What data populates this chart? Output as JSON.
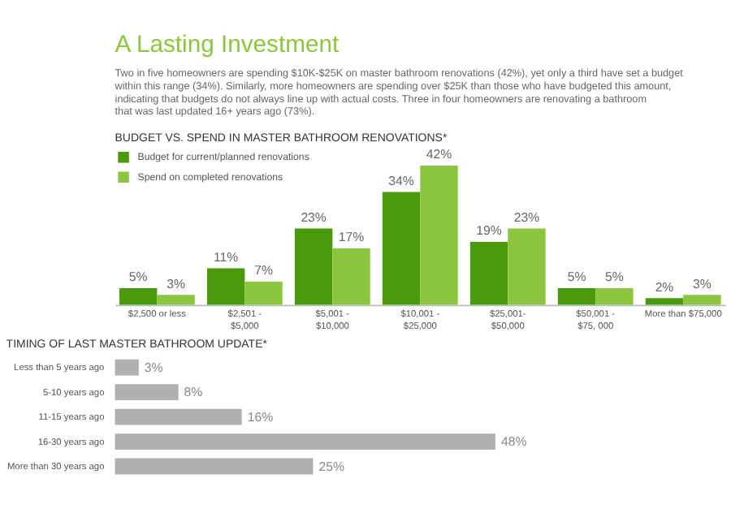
{
  "chart_data": [
    {
      "type": "bar",
      "title": "BUDGET VS. SPEND IN MASTER BATHROOM RENOVATIONS*",
      "annotations": [
        "A Lasting Investment",
        "Two in five homeowners are spending $10K-$25K on master bathroom renovations (42%), yet only a third have set a budget within this range (34%). Similarly, more homeowners are spending over $25K than those who have budgeted this amount, indicating that budgets do not always line up with actual costs. Three in four homeowners are renovating a bathroom that was last updated 16+ years ago (73%)."
      ],
      "categories": [
        "$2,500 or less",
        "$2,501 -\n$5,000",
        "$5,001 -\n$10,000",
        "$10,001 -\n$25,000",
        "$25,001-\n$50,000",
        "$50,001 -\n$75, 000",
        "More than $75,000"
      ],
      "series": [
        {
          "name": "Budget for current/planned renovations",
          "color": "#4b9a0c",
          "values": [
            5,
            11,
            23,
            34,
            19,
            5,
            2
          ],
          "value_labels": [
            "5%",
            "11%",
            "23%",
            "34%",
            "19%",
            "5%",
            "2%"
          ]
        },
        {
          "name": "Spend on completed renovations",
          "color": "#8cc63f",
          "values": [
            3,
            7,
            17,
            42,
            23,
            5,
            3
          ],
          "value_labels": [
            "3%",
            "7%",
            "17%",
            "42%",
            "23%",
            "5%",
            "3%"
          ]
        }
      ],
      "tick_labels": "x",
      "legend": "top left",
      "grid": false
    },
    {
      "type": "bar",
      "orientation": "horizontal",
      "title": "TIMING OF LAST MASTER BATHROOM UPDATE*",
      "categories": [
        "Less than 5 years ago",
        "5-10 years ago",
        "11-15 years ago",
        "16-30 years ago",
        "More than 30 years ago"
      ],
      "values": [
        3,
        8,
        16,
        48,
        25
      ],
      "value_labels": [
        "3%",
        "8%",
        "16%",
        "48%",
        "25%"
      ],
      "color": "#b0b0b0",
      "tick_labels": "y",
      "grid": false
    }
  ]
}
